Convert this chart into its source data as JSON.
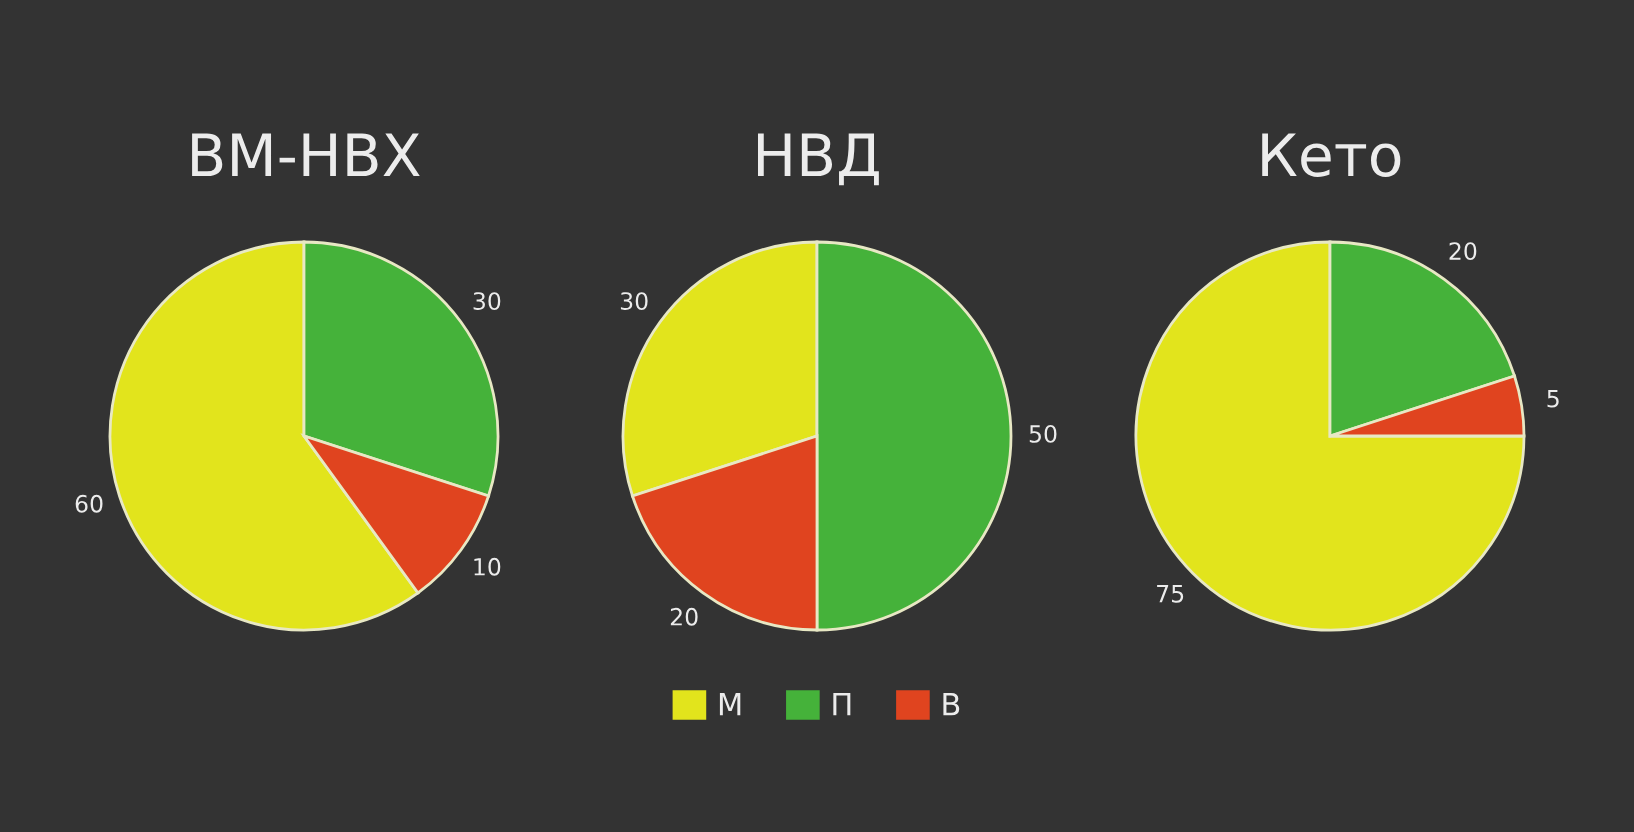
{
  "chart_data": [
    {
      "type": "pie",
      "title": "ВМ-НВХ",
      "categories": [
        "М",
        "П",
        "В"
      ],
      "values": [
        60,
        30,
        10
      ],
      "colors": [
        "#e2e41c",
        "#45b23a",
        "#e0441f"
      ],
      "data_labels": true,
      "legend": "bottom"
    },
    {
      "type": "pie",
      "title": "НВД",
      "categories": [
        null,
        null,
        null
      ],
      "values": [
        30,
        50,
        20
      ],
      "colors": [
        "#e2e41c",
        "#45b23a",
        "#e0441f"
      ],
      "data_labels": true
    },
    {
      "type": "pie",
      "title": "Кето",
      "categories": [
        null,
        null,
        null
      ],
      "values": [
        75,
        20,
        5
      ],
      "colors": [
        "#e2e41c",
        "#45b23a",
        "#e0441f"
      ],
      "data_labels": true
    }
  ]
}
